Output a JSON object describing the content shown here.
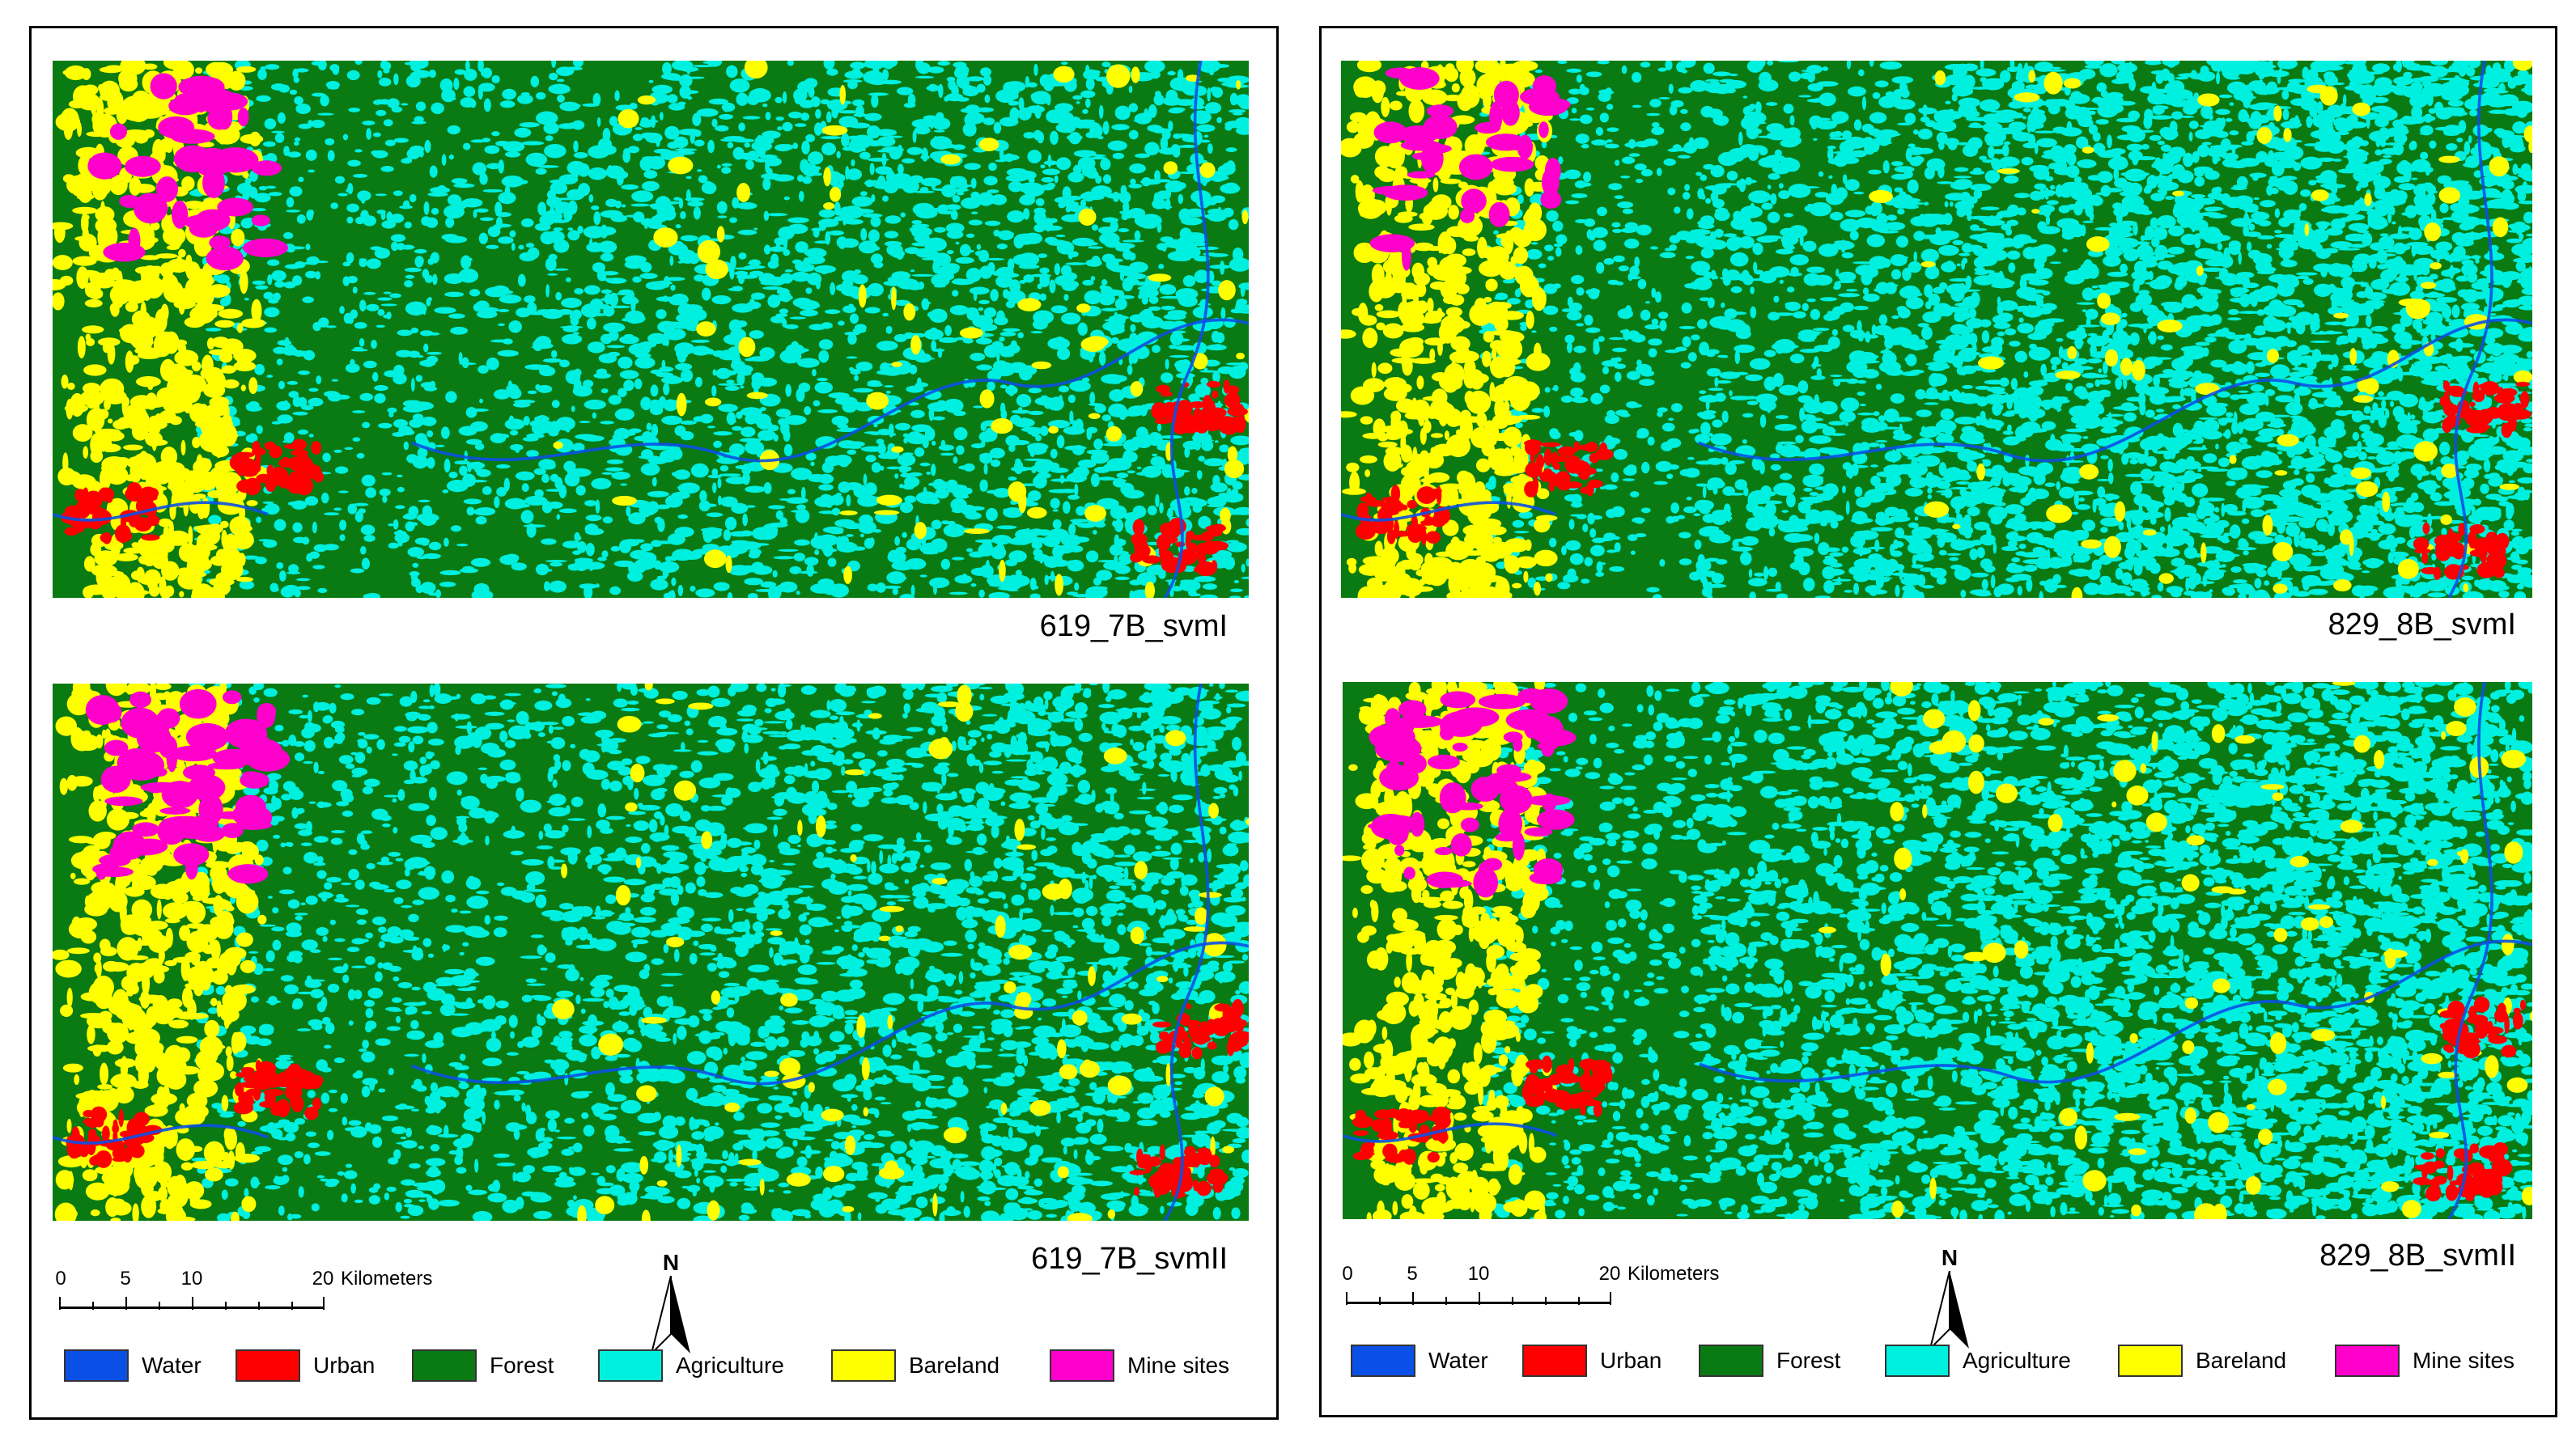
{
  "colors": {
    "water": "#0a50e6",
    "urban": "#ff0000",
    "forest": "#0a7a12",
    "agriculture": "#00f0e0",
    "bareland": "#ffff00",
    "mine_sites": "#ff00cc"
  },
  "maps": [
    {
      "label": "619_7B_svmI"
    },
    {
      "label": "619_7B_svmII"
    },
    {
      "label": "829_8B_svmI"
    },
    {
      "label": "829_8B_svmII"
    }
  ],
  "scalebar": {
    "ticks": [
      "0",
      "5",
      "10",
      "20"
    ],
    "unit": "Kilometers"
  },
  "north_arrow": {
    "label": "N"
  },
  "legend": [
    {
      "label": "Water",
      "color": "#0a50e6"
    },
    {
      "label": "Urban",
      "color": "#ff0000"
    },
    {
      "label": "Forest",
      "color": "#0a7a12"
    },
    {
      "label": "Agriculture",
      "color": "#00f0e0"
    },
    {
      "label": "Bareland",
      "color": "#ffff00"
    },
    {
      "label": "Mine sites",
      "color": "#ff00cc"
    }
  ]
}
